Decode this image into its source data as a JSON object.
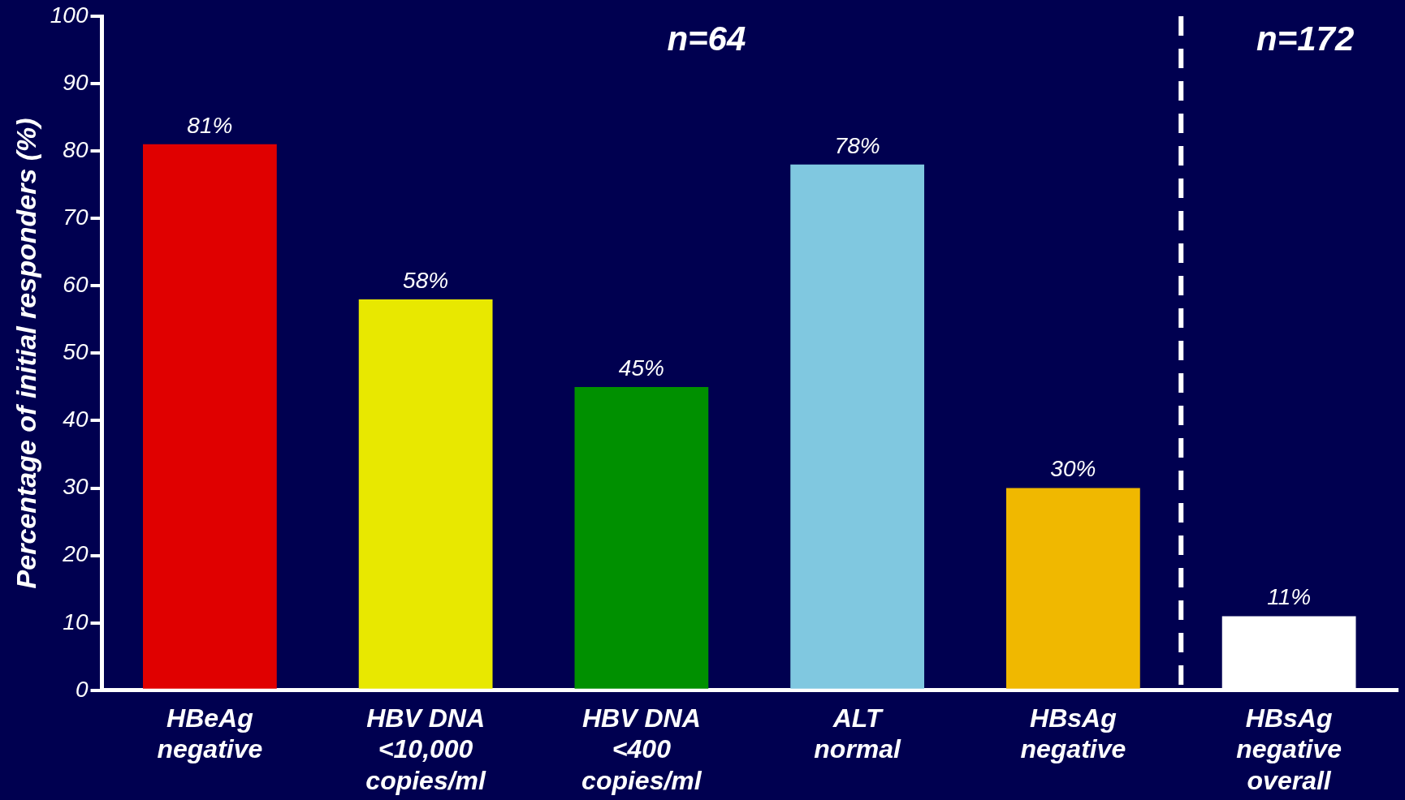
{
  "chart_data": {
    "type": "bar",
    "ylabel": "Percentage of initial responders (%)",
    "categories": [
      "HBeAg negative",
      "HBV DNA <10,000 copies/ml",
      "HBV DNA <400 copies/ml",
      "ALT normal",
      "HBsAg negative",
      "HBsAg negative overall"
    ],
    "values": [
      81,
      58,
      45,
      78,
      30,
      11
    ],
    "colors": [
      "#e00000",
      "#e8e800",
      "#009000",
      "#80c8e0",
      "#f0b800",
      "#ffffff"
    ],
    "value_labels": [
      "81%",
      "58%",
      "45%",
      "78%",
      "30%",
      "11%"
    ],
    "ylim": [
      0,
      100
    ],
    "yticks": [
      0,
      10,
      20,
      30,
      40,
      50,
      60,
      70,
      80,
      90,
      100
    ],
    "grid": false,
    "legend": false,
    "annotations": [
      "n=64",
      "n=172"
    ]
  }
}
